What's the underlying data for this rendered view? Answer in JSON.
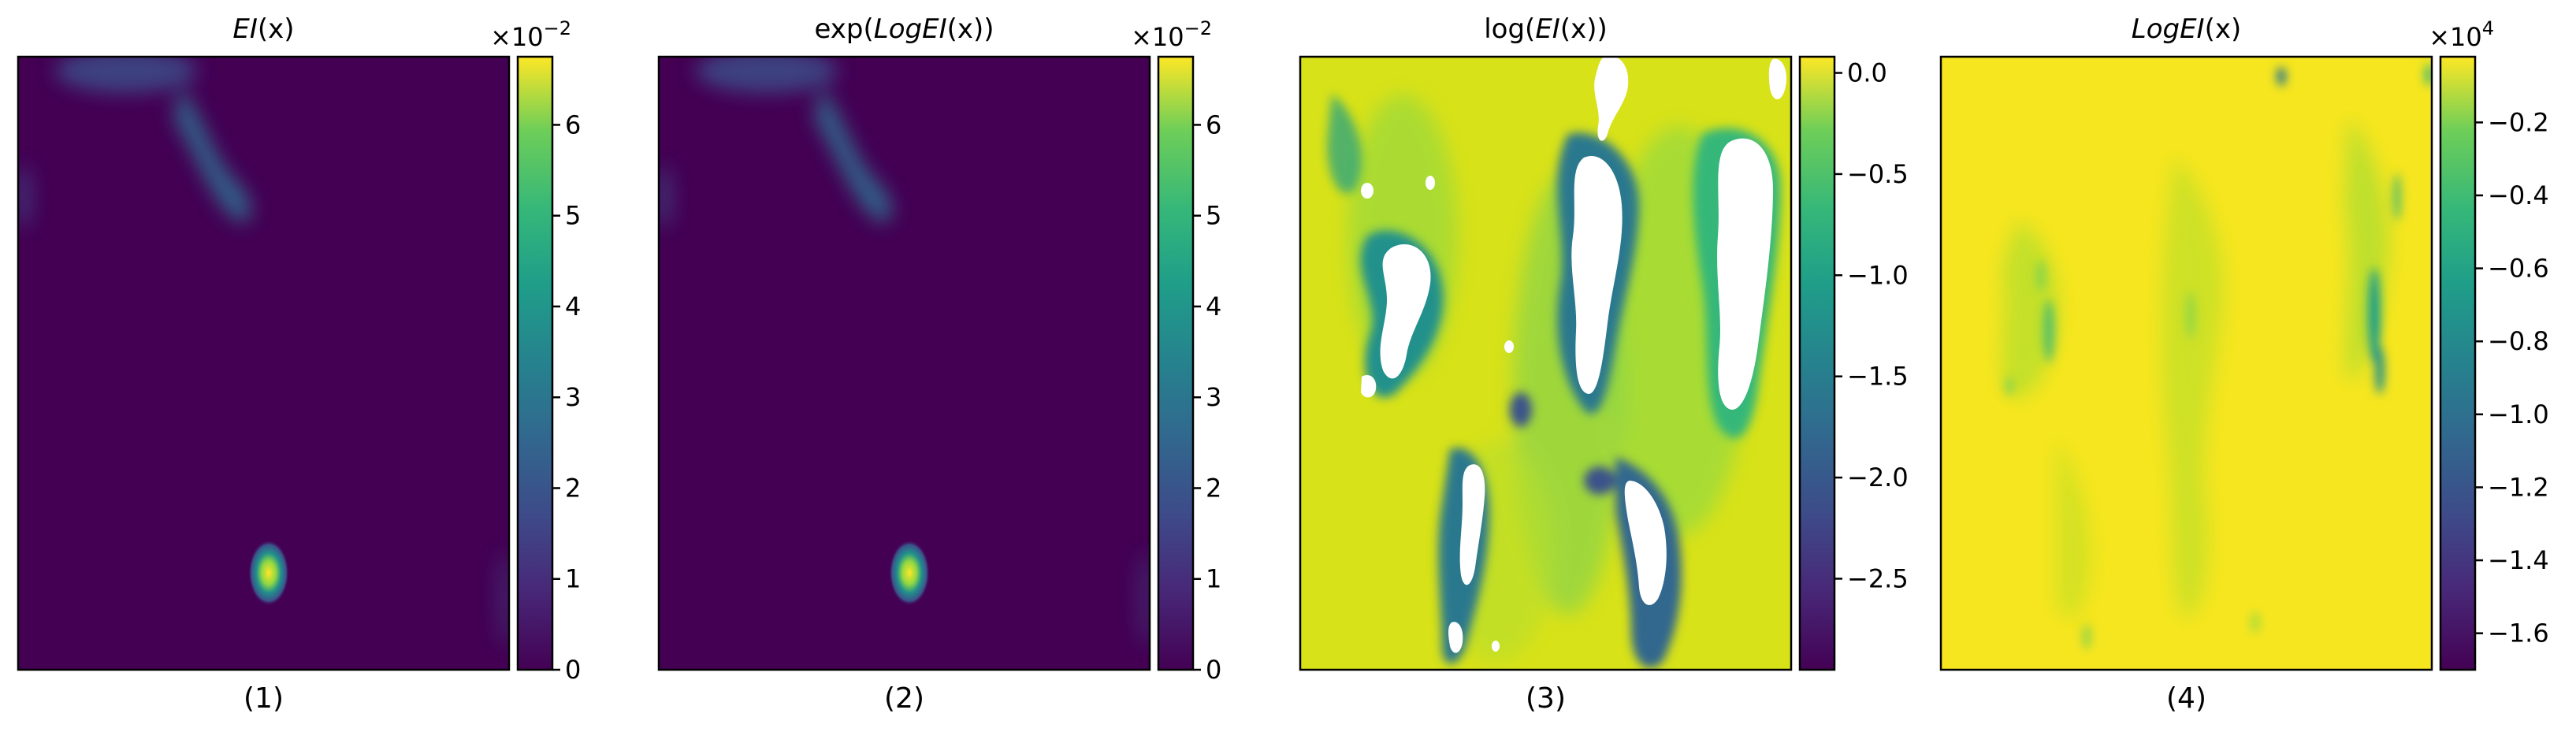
{
  "chart_data": [
    {
      "type": "heatmap",
      "title": "EI(x)",
      "title_parts": [
        {
          "text": "EI",
          "italic": true
        },
        {
          "text": "(x)",
          "italic": false
        }
      ],
      "caption": "(1)",
      "colorbar": {
        "multiplier": "×10",
        "exponent": "−2",
        "ticks": [
          "0",
          "1",
          "2",
          "3",
          "4",
          "5",
          "6"
        ],
        "tick_values": [
          0,
          1,
          2,
          3,
          4,
          5,
          6
        ],
        "range": [
          0,
          6.75
        ]
      },
      "colormap": "viridis",
      "features": [
        {
          "kind": "blob",
          "cx": 0.22,
          "cy": 0.05,
          "rx": 0.13,
          "ry": 0.05,
          "level": 0.3
        },
        {
          "kind": "blob",
          "cx": 0.44,
          "cy": 0.17,
          "rx": 0.07,
          "ry": 0.12,
          "level": 0.35
        },
        {
          "kind": "blob",
          "cx": 0.51,
          "cy": 0.84,
          "rx": 0.035,
          "ry": 0.055,
          "level": 1.0
        }
      ]
    },
    {
      "type": "heatmap",
      "title": "exp(LogEI(x))",
      "title_parts": [
        {
          "text": "exp(",
          "italic": false
        },
        {
          "text": "LogEI",
          "italic": true
        },
        {
          "text": "(x))",
          "italic": false
        }
      ],
      "caption": "(2)",
      "colorbar": {
        "multiplier": "×10",
        "exponent": "−2",
        "ticks": [
          "0",
          "1",
          "2",
          "3",
          "4",
          "5",
          "6"
        ],
        "tick_values": [
          0,
          1,
          2,
          3,
          4,
          5,
          6
        ],
        "range": [
          0,
          6.75
        ]
      },
      "colormap": "viridis"
    },
    {
      "type": "heatmap",
      "title": "log(EI(x))",
      "title_parts": [
        {
          "text": "log(",
          "italic": false
        },
        {
          "text": "EI",
          "italic": true
        },
        {
          "text": "(x))",
          "italic": false
        }
      ],
      "caption": "(3)",
      "colorbar": {
        "multiplier": "",
        "exponent": "",
        "ticks": [
          "0.0",
          "−0.5",
          "−1.0",
          "−1.5",
          "−2.0",
          "−2.5"
        ],
        "tick_values": [
          0.0,
          -0.5,
          -1.0,
          -1.5,
          -2.0,
          -2.5
        ],
        "range": [
          -2.95,
          0.08
        ]
      },
      "colormap": "viridis",
      "note": "white regions are undefined (log of zero)"
    },
    {
      "type": "heatmap",
      "title": "LogEI(x)",
      "title_parts": [
        {
          "text": "LogEI",
          "italic": true
        },
        {
          "text": "(x)",
          "italic": false
        }
      ],
      "caption": "(4)",
      "colorbar": {
        "multiplier": "×10",
        "exponent": "4",
        "ticks": [
          "−0.2",
          "−0.4",
          "−0.6",
          "−0.8",
          "−1.0",
          "−1.2",
          "−1.4",
          "−1.6"
        ],
        "tick_values": [
          -0.2,
          -0.4,
          -0.6,
          -0.8,
          -1.0,
          -1.2,
          -1.4,
          -1.6
        ],
        "range": [
          -1.7,
          -0.02
        ]
      },
      "colormap": "viridis"
    }
  ]
}
